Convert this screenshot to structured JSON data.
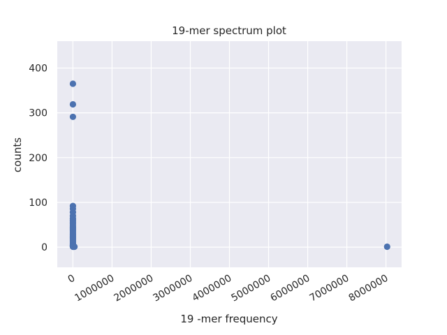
{
  "chart_data": {
    "type": "scatter",
    "title": "19-mer spectrum plot",
    "xlabel": "19 -mer frequency",
    "ylabel": "counts",
    "xlim": [
      -400000,
      8400000
    ],
    "ylim": [
      -45,
      460
    ],
    "x_ticks": [
      0,
      1000000,
      2000000,
      3000000,
      4000000,
      5000000,
      6000000,
      7000000,
      8000000
    ],
    "x_tick_labels": [
      "0",
      "1000000",
      "2000000",
      "3000000",
      "4000000",
      "5000000",
      "6000000",
      "7000000",
      "8000000"
    ],
    "y_ticks": [
      0,
      100,
      200,
      300,
      400
    ],
    "y_tick_labels": [
      "0",
      "100",
      "200",
      "300",
      "400"
    ],
    "grid": true,
    "background": "#eaeaf2",
    "marker_color": "#4c72b0",
    "series": [
      {
        "points": [
          {
            "x": 2,
            "y": 365
          },
          {
            "x": 3,
            "y": 319
          },
          {
            "x": 4,
            "y": 291
          },
          {
            "x": 5,
            "y": 92
          },
          {
            "x": 6,
            "y": 86
          },
          {
            "x": 7,
            "y": 78
          },
          {
            "x": 8,
            "y": 70
          },
          {
            "x": 9,
            "y": 64
          },
          {
            "x": 10,
            "y": 60
          },
          {
            "x": 11,
            "y": 56
          },
          {
            "x": 12,
            "y": 52
          },
          {
            "x": 13,
            "y": 48
          },
          {
            "x": 14,
            "y": 45
          },
          {
            "x": 15,
            "y": 42
          },
          {
            "x": 16,
            "y": 39
          },
          {
            "x": 17,
            "y": 36
          },
          {
            "x": 18,
            "y": 33
          },
          {
            "x": 19,
            "y": 30
          },
          {
            "x": 20,
            "y": 27
          },
          {
            "x": 21,
            "y": 24
          },
          {
            "x": 22,
            "y": 21
          },
          {
            "x": 23,
            "y": 18
          },
          {
            "x": 24,
            "y": 15
          },
          {
            "x": 25,
            "y": 12
          },
          {
            "x": 26,
            "y": 9
          },
          {
            "x": 27,
            "y": 6
          },
          {
            "x": 30,
            "y": 4
          },
          {
            "x": 40,
            "y": 3
          },
          {
            "x": 60,
            "y": 2
          },
          {
            "x": 100,
            "y": 2
          },
          {
            "x": 1000,
            "y": 1
          },
          {
            "x": 5000,
            "y": 1
          },
          {
            "x": 20000,
            "y": 1
          },
          {
            "x": 40000,
            "y": 1
          },
          {
            "x": 8030000,
            "y": 1
          }
        ]
      }
    ]
  }
}
